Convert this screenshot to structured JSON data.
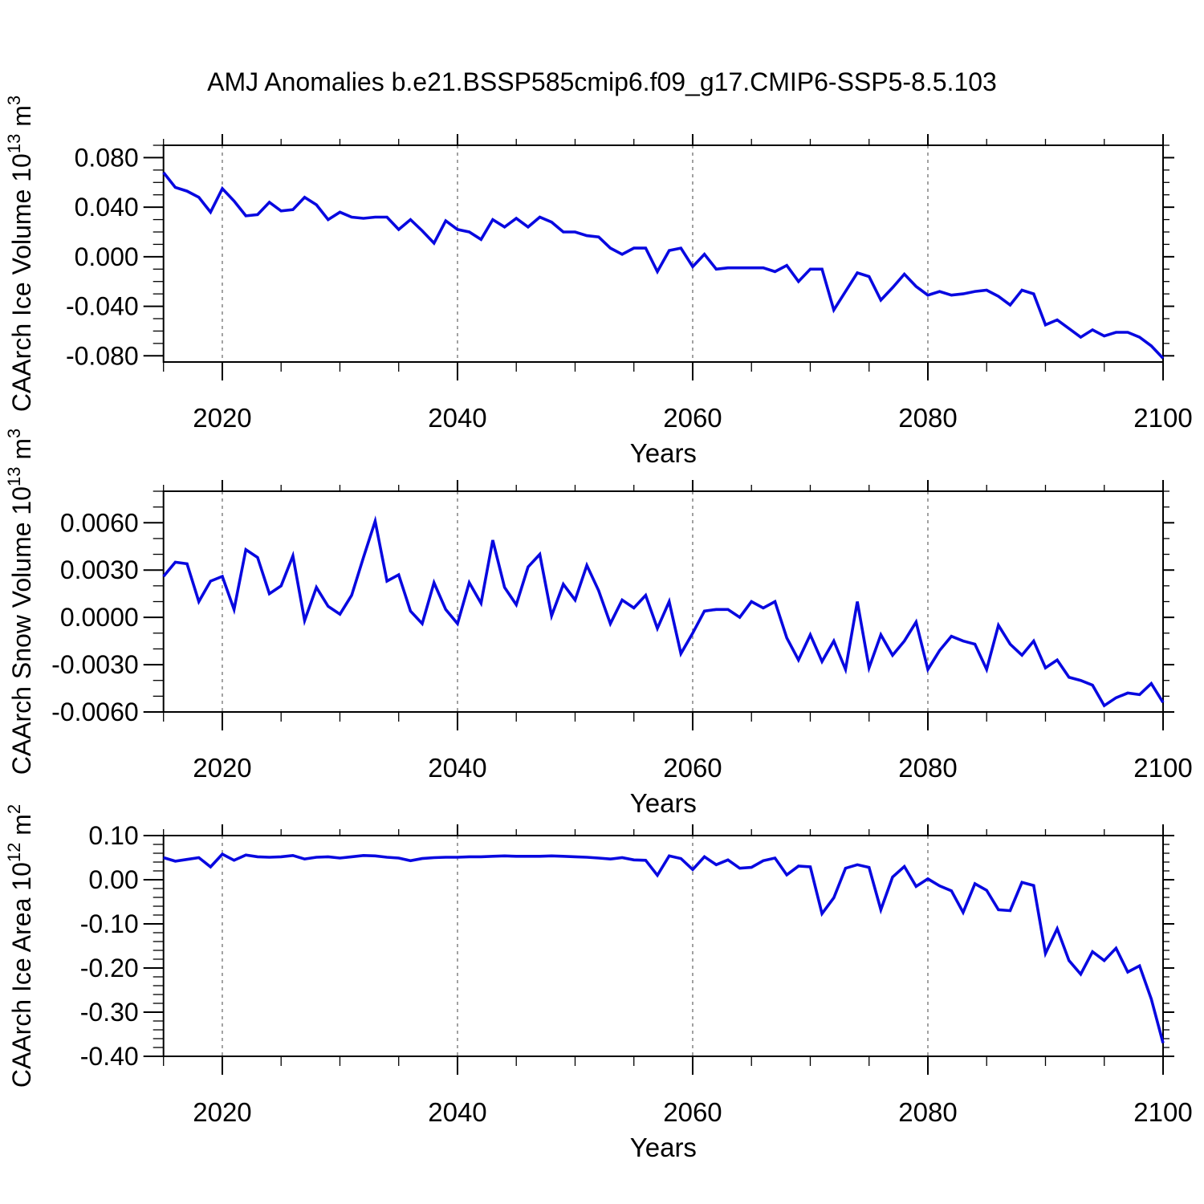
{
  "title": "AMJ Anomalies b.e21.BSSP585cmip6.f09_g17.CMIP6-SSP5-8.5.103",
  "colors": {
    "line": "#0808e0",
    "axis": "#000000",
    "grid": "#7a7a7a",
    "background": "#ffffff"
  },
  "chart_data": [
    {
      "type": "line",
      "name": "ice-volume",
      "ylabel_plain": "CAArch Ice Volume 10^13 m^3",
      "ylabel_parts": [
        {
          "text": "CAArch Ice Volume 10"
        },
        {
          "text": "13",
          "sup": true
        },
        {
          "text": " m"
        },
        {
          "text": "3",
          "sup": true
        }
      ],
      "xlabel": "Years",
      "x_range": [
        2015,
        2100
      ],
      "x_step": 1,
      "xticks": [
        2020,
        2040,
        2060,
        2080,
        2100
      ],
      "xtick_labels": [
        "2020",
        "2040",
        "2060",
        "2080",
        "2100"
      ],
      "x_minor_step": 5,
      "grid_x": [
        2020,
        2040,
        2060,
        2080
      ],
      "ylim": [
        -0.085,
        0.09
      ],
      "yticks": [
        0.08,
        0.04,
        0.0,
        -0.04,
        -0.08
      ],
      "ytick_labels": [
        "0.080",
        "0.040",
        "0.000",
        "-0.040",
        "-0.080"
      ],
      "y_minor_step": 0.01,
      "values": [
        0.068,
        0.056,
        0.053,
        0.048,
        0.036,
        0.055,
        0.045,
        0.033,
        0.034,
        0.044,
        0.037,
        0.038,
        0.048,
        0.042,
        0.03,
        0.036,
        0.032,
        0.031,
        0.032,
        0.032,
        0.022,
        0.03,
        0.021,
        0.011,
        0.029,
        0.022,
        0.02,
        0.014,
        0.03,
        0.024,
        0.031,
        0.024,
        0.032,
        0.028,
        0.02,
        0.02,
        0.017,
        0.016,
        0.007,
        0.002,
        0.007,
        0.007,
        -0.012,
        0.005,
        0.007,
        -0.008,
        0.002,
        -0.01,
        -0.009,
        -0.009,
        -0.009,
        -0.009,
        -0.012,
        -0.007,
        -0.02,
        -0.01,
        -0.01,
        -0.043,
        -0.028,
        -0.013,
        -0.016,
        -0.035,
        -0.025,
        -0.014,
        -0.024,
        -0.031,
        -0.028,
        -0.031,
        -0.03,
        -0.028,
        -0.027,
        -0.032,
        -0.039,
        -0.027,
        -0.03,
        -0.055,
        -0.051,
        -0.058,
        -0.065,
        -0.059,
        -0.064,
        -0.061,
        -0.061,
        -0.065,
        -0.072,
        -0.082
      ]
    },
    {
      "type": "line",
      "name": "snow-volume",
      "ylabel_plain": "CAArch Snow Volume 10^13 m^3",
      "ylabel_parts": [
        {
          "text": "CAArch Snow Volume 10"
        },
        {
          "text": "13",
          "sup": true
        },
        {
          "text": " m"
        },
        {
          "text": "3",
          "sup": true
        }
      ],
      "xlabel": "Years",
      "x_range": [
        2015,
        2100
      ],
      "x_step": 1,
      "xticks": [
        2020,
        2040,
        2060,
        2080,
        2100
      ],
      "xtick_labels": [
        "2020",
        "2040",
        "2060",
        "2080",
        "2100"
      ],
      "x_minor_step": 5,
      "grid_x": [
        2020,
        2040,
        2060,
        2080
      ],
      "ylim": [
        -0.006,
        0.008
      ],
      "yticks": [
        0.006,
        0.003,
        0.0,
        -0.003,
        -0.006
      ],
      "ytick_labels": [
        "0.0060",
        "0.0030",
        "0.0000",
        "-0.0030",
        "-0.0060"
      ],
      "y_minor_step": 0.001,
      "values": [
        0.0026,
        0.0035,
        0.0034,
        0.001,
        0.0023,
        0.0026,
        0.0005,
        0.0043,
        0.0038,
        0.0015,
        0.002,
        0.0039,
        -0.0002,
        0.0019,
        0.0007,
        0.0002,
        0.0014,
        0.0038,
        0.0061,
        0.0023,
        0.0027,
        0.0004,
        -0.0004,
        0.0022,
        0.0005,
        -0.0004,
        0.0022,
        0.0009,
        0.0049,
        0.0019,
        0.0008,
        0.0032,
        0.004,
        0.0001,
        0.0021,
        0.0011,
        0.0033,
        0.0017,
        -0.0004,
        0.0011,
        0.0006,
        0.0014,
        -0.0007,
        0.001,
        -0.0023,
        -0.001,
        0.0004,
        0.0005,
        0.0005,
        0.0,
        0.001,
        0.0006,
        0.001,
        -0.0013,
        -0.0027,
        -0.0011,
        -0.0028,
        -0.0015,
        -0.0033,
        0.001,
        -0.0032,
        -0.0011,
        -0.0024,
        -0.0015,
        -0.0003,
        -0.0033,
        -0.0021,
        -0.0012,
        -0.0015,
        -0.0017,
        -0.0033,
        -0.0005,
        -0.0017,
        -0.0024,
        -0.0015,
        -0.0032,
        -0.0027,
        -0.0038,
        -0.004,
        -0.0043,
        -0.0056,
        -0.0051,
        -0.0048,
        -0.0049,
        -0.0042,
        -0.0054
      ]
    },
    {
      "type": "line",
      "name": "ice-area",
      "ylabel_plain": "CAArch Ice Area 10^12 m^2",
      "ylabel_parts": [
        {
          "text": "CAArch Ice Area 10"
        },
        {
          "text": "12",
          "sup": true
        },
        {
          "text": " m"
        },
        {
          "text": "2",
          "sup": true
        }
      ],
      "xlabel": "Years",
      "x_range": [
        2015,
        2100
      ],
      "x_step": 1,
      "xticks": [
        2020,
        2040,
        2060,
        2080,
        2100
      ],
      "xtick_labels": [
        "2020",
        "2040",
        "2060",
        "2080",
        "2100"
      ],
      "x_minor_step": 5,
      "grid_x": [
        2020,
        2040,
        2060,
        2080
      ],
      "ylim": [
        -0.4,
        0.1
      ],
      "yticks": [
        0.1,
        0.0,
        -0.1,
        -0.2,
        -0.3,
        -0.4
      ],
      "ytick_labels": [
        "0.10",
        "0.00",
        "-0.10",
        "-0.20",
        "-0.30",
        "-0.40"
      ],
      "y_minor_step": 0.02,
      "values": [
        0.05,
        0.042,
        0.046,
        0.05,
        0.029,
        0.058,
        0.044,
        0.056,
        0.052,
        0.051,
        0.052,
        0.055,
        0.047,
        0.051,
        0.052,
        0.049,
        0.052,
        0.055,
        0.054,
        0.051,
        0.049,
        0.043,
        0.048,
        0.05,
        0.051,
        0.051,
        0.052,
        0.052,
        0.053,
        0.054,
        0.053,
        0.053,
        0.053,
        0.054,
        0.053,
        0.052,
        0.051,
        0.049,
        0.047,
        0.05,
        0.045,
        0.044,
        0.01,
        0.054,
        0.048,
        0.023,
        0.052,
        0.034,
        0.045,
        0.026,
        0.028,
        0.043,
        0.049,
        0.011,
        0.031,
        0.029,
        -0.077,
        -0.041,
        0.026,
        0.034,
        0.028,
        -0.068,
        0.006,
        0.03,
        -0.015,
        0.002,
        -0.014,
        -0.025,
        -0.074,
        -0.009,
        -0.024,
        -0.068,
        -0.07,
        -0.006,
        -0.013,
        -0.167,
        -0.111,
        -0.183,
        -0.214,
        -0.163,
        -0.183,
        -0.155,
        -0.209,
        -0.195,
        -0.27,
        -0.37
      ]
    }
  ]
}
